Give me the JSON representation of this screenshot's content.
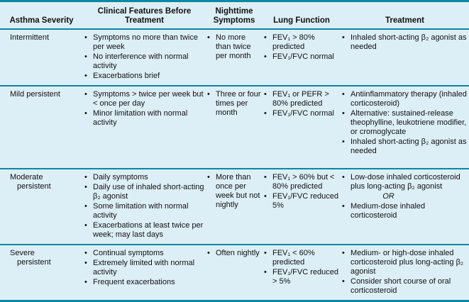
{
  "colors": {
    "background": "#ddeff6",
    "rule": "#0d87a3",
    "text": "#101010"
  },
  "table": {
    "headers": [
      "Asthma Severity",
      "Clinical Features Before Treatment",
      "Nighttime Symptoms",
      "Lung Function",
      "Treatment"
    ],
    "rows": [
      {
        "severity": "Intermittent",
        "clinical": [
          "Symptoms no more than twice per week",
          "No interference with normal activity",
          "Exacerbations brief"
        ],
        "nighttime": [
          "No more than twice per month"
        ],
        "lung": [
          "FEV₁ > 80% predicted",
          "FEV₁/FVC normal"
        ],
        "treatment": [
          "Inhaled short-acting β₂ agonist as needed"
        ]
      },
      {
        "severity": "Mild persistent",
        "clinical": [
          "Symptoms > twice per week but < once per day",
          "Minor limitation with normal activity"
        ],
        "nighttime": [
          "Three or four times per month"
        ],
        "lung": [
          "FEV₁ or PEFR > 80% predicted",
          "FEV₁/FVC normal"
        ],
        "treatment": [
          "Antiinflammatory therapy (inhaled corticosteroid)",
          "Alternative: sustained-release theophylline, leukotriene modifier, or cromoglycate",
          "Inhaled short-acting β₂ agonist as needed"
        ]
      },
      {
        "severity": "Moderate\npersistent",
        "clinical": [
          "Daily symptoms",
          "Daily use of inhaled short-acting β₂ agonist",
          "Some limitation with normal activity",
          "Exacerbations at least twice per week; may last days"
        ],
        "nighttime": [
          "More than once per week but not nightly"
        ],
        "lung": [
          "FEV₁ > 60% but < 80% predicted",
          "FEV₁/FVC reduced 5%"
        ],
        "treatment": [
          "Low-dose inhaled corticosteroid plus long-acting β₂ agonist",
          "OR",
          "Medium-dose inhaled corticosteroid"
        ]
      },
      {
        "severity": "Severe\npersistent",
        "clinical": [
          "Continual symptoms",
          "Extremely limited with normal activity",
          "Frequent exacerbations"
        ],
        "nighttime": [
          "Often nightly"
        ],
        "lung": [
          "FEV₁ < 60% predicted",
          "FEV₁/FVC reduced > 5%"
        ],
        "treatment": [
          "Medium- or high-dose inhaled corticosteroid plus long-acting β₂ agonist",
          "Consider short course of oral corticosteroid"
        ]
      }
    ]
  }
}
